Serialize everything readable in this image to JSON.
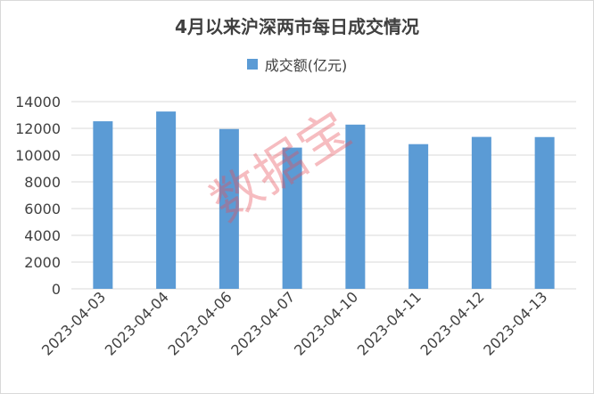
{
  "chart_data": {
    "type": "bar",
    "title": "4月以来沪深两市每日成交情况",
    "categories": [
      "2023-04-03",
      "2023-04-04",
      "2023-04-06",
      "2023-04-07",
      "2023-04-10",
      "2023-04-11",
      "2023-04-12",
      "2023-04-13"
    ],
    "series": [
      {
        "name": "成交额(亿元)",
        "color": "#5b9bd5",
        "values": [
          12530,
          13260,
          11950,
          10560,
          12280,
          10820,
          11360,
          11350
        ]
      }
    ],
    "yticks": [
      "0",
      "2000",
      "4000",
      "6000",
      "8000",
      "10000",
      "12000",
      "14000"
    ],
    "ylim": [
      0,
      14000
    ],
    "grid": true,
    "legend_position": "top"
  },
  "watermark": "数据宝"
}
